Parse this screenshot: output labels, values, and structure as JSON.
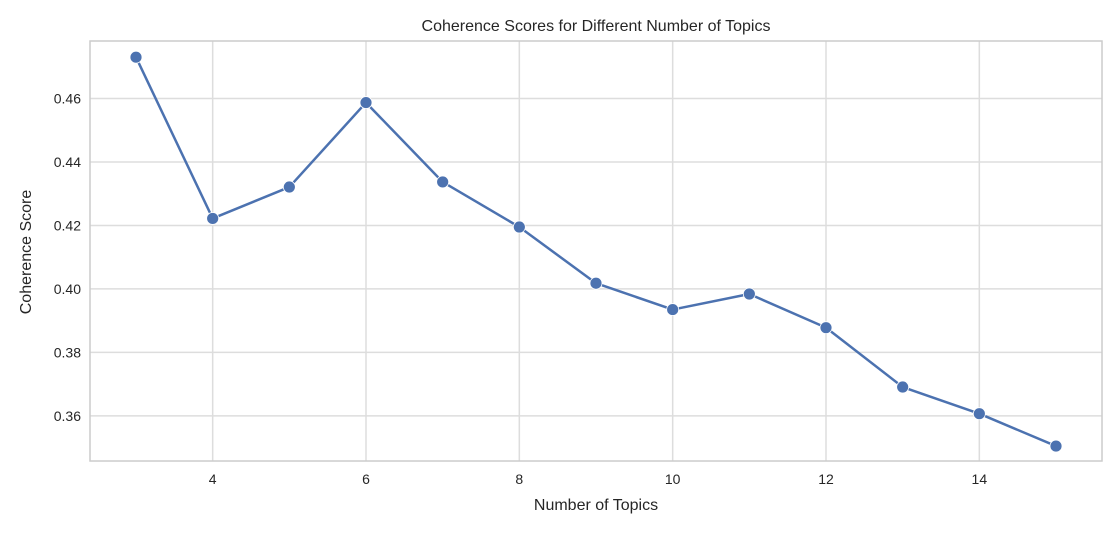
{
  "chart_data": {
    "type": "line",
    "title": "Coherence Scores for Different Number of Topics",
    "xlabel": "Number of Topics",
    "ylabel": "Coherence Score",
    "xlim": [
      2.4,
      15.6
    ],
    "ylim": [
      0.3458,
      0.4781
    ],
    "xticks": [
      4,
      6,
      8,
      10,
      12,
      14
    ],
    "yticks": [
      0.36,
      0.38,
      0.4,
      0.42,
      0.44,
      0.46
    ],
    "xtick_labels": [
      "4",
      "6",
      "8",
      "10",
      "12",
      "14"
    ],
    "ytick_labels": [
      "0.36",
      "0.38",
      "0.40",
      "0.42",
      "0.44",
      "0.46"
    ],
    "grid": true,
    "line_color": "#4c72b0",
    "series": [
      {
        "x": [
          3,
          4,
          5,
          6,
          7,
          8,
          9,
          10,
          11,
          12,
          13,
          14,
          15
        ],
        "values": [
          0.473,
          0.4222,
          0.4321,
          0.4587,
          0.4337,
          0.4195,
          0.4018,
          0.3935,
          0.3984,
          0.3878,
          0.3691,
          0.3607,
          0.3505
        ]
      }
    ]
  }
}
